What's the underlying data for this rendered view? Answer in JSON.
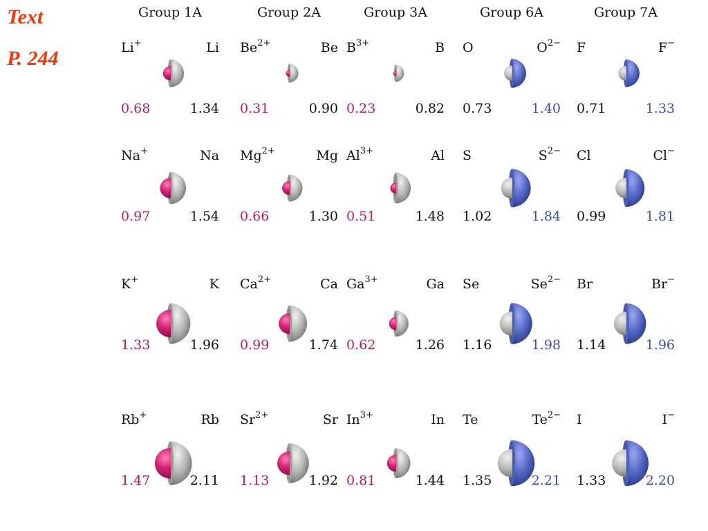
{
  "side_labels": [
    "Text",
    "P. 244"
  ],
  "colors": {
    "cation_value": "#c2185b",
    "anion_value": "#3a4fb0",
    "neutral_value": "#111111",
    "side_label": "#ff3300"
  },
  "groups": [
    {
      "header": "Group 1A",
      "kind": "cation",
      "rows": [
        {
          "ion_symbol": "Li",
          "ion_charge": "+",
          "atom_symbol": "Li",
          "ion_radius": "0.68",
          "atom_radius": "1.34"
        },
        {
          "ion_symbol": "Na",
          "ion_charge": "+",
          "atom_symbol": "Na",
          "ion_radius": "0.97",
          "atom_radius": "1.54"
        },
        {
          "ion_symbol": "K",
          "ion_charge": "+",
          "atom_symbol": "K",
          "ion_radius": "1.33",
          "atom_radius": "1.96"
        },
        {
          "ion_symbol": "Rb",
          "ion_charge": "+",
          "atom_symbol": "Rb",
          "ion_radius": "1.47",
          "atom_radius": "2.11"
        }
      ]
    },
    {
      "header": "Group 2A",
      "kind": "cation",
      "rows": [
        {
          "ion_symbol": "Be",
          "ion_charge": "2+",
          "atom_symbol": "Be",
          "ion_radius": "0.31",
          "atom_radius": "0.90"
        },
        {
          "ion_symbol": "Mg",
          "ion_charge": "2+",
          "atom_symbol": "Mg",
          "ion_radius": "0.66",
          "atom_radius": "1.30"
        },
        {
          "ion_symbol": "Ca",
          "ion_charge": "2+",
          "atom_symbol": "Ca",
          "ion_radius": "0.99",
          "atom_radius": "1.74"
        },
        {
          "ion_symbol": "Sr",
          "ion_charge": "2+",
          "atom_symbol": "Sr",
          "ion_radius": "1.13",
          "atom_radius": "1.92"
        }
      ]
    },
    {
      "header": "Group 3A",
      "kind": "cation",
      "rows": [
        {
          "ion_symbol": "B",
          "ion_charge": "3+",
          "atom_symbol": "B",
          "ion_radius": "0.23",
          "atom_radius": "0.82"
        },
        {
          "ion_symbol": "Al",
          "ion_charge": "3+",
          "atom_symbol": "Al",
          "ion_radius": "0.51",
          "atom_radius": "1.48"
        },
        {
          "ion_symbol": "Ga",
          "ion_charge": "3+",
          "atom_symbol": "Ga",
          "ion_radius": "0.62",
          "atom_radius": "1.26"
        },
        {
          "ion_symbol": "In",
          "ion_charge": "3+",
          "atom_symbol": "In",
          "ion_radius": "0.81",
          "atom_radius": "1.44"
        }
      ]
    },
    {
      "header": "Group 6A",
      "kind": "anion",
      "rows": [
        {
          "atom_symbol": "O",
          "ion_symbol": "O",
          "ion_charge": "2−",
          "atom_radius": "0.73",
          "ion_radius": "1.40"
        },
        {
          "atom_symbol": "S",
          "ion_symbol": "S",
          "ion_charge": "2−",
          "atom_radius": "1.02",
          "ion_radius": "1.84"
        },
        {
          "atom_symbol": "Se",
          "ion_symbol": "Se",
          "ion_charge": "2−",
          "atom_radius": "1.16",
          "ion_radius": "1.98"
        },
        {
          "atom_symbol": "Te",
          "ion_symbol": "Te",
          "ion_charge": "2−",
          "atom_radius": "1.35",
          "ion_radius": "2.21"
        }
      ]
    },
    {
      "header": "Group 7A",
      "kind": "anion",
      "rows": [
        {
          "atom_symbol": "F",
          "ion_symbol": "F",
          "ion_charge": "−",
          "atom_radius": "0.71",
          "ion_radius": "1.33"
        },
        {
          "atom_symbol": "Cl",
          "ion_symbol": "Cl",
          "ion_charge": "−",
          "atom_radius": "0.99",
          "ion_radius": "1.81"
        },
        {
          "atom_symbol": "Br",
          "ion_symbol": "Br",
          "ion_charge": "−",
          "atom_radius": "1.14",
          "ion_radius": "1.96"
        },
        {
          "atom_symbol": "I",
          "ion_symbol": "I",
          "ion_charge": "−",
          "atom_radius": "1.33",
          "ion_radius": "2.20"
        }
      ]
    }
  ]
}
